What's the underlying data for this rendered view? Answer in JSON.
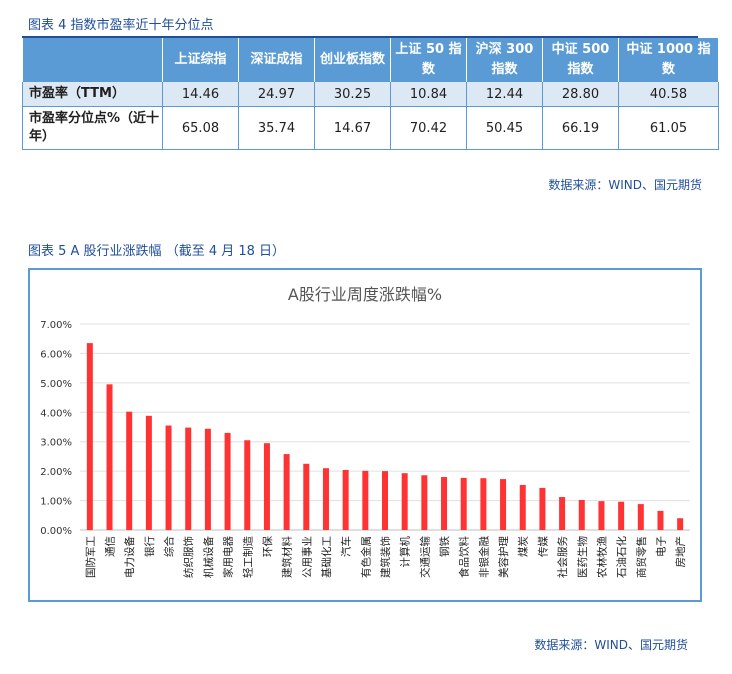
{
  "fig4": {
    "caption": "图表 4 指数市盈率近十年分位点",
    "headers": [
      "",
      "上证综指",
      "深证成指",
      "创业板指数",
      "上证 50 指数",
      "沪深 300 指数",
      "中证 500 指数",
      "中证 1000 指数"
    ],
    "rows": [
      {
        "label": "市盈率（TTM）",
        "values": [
          "14.46",
          "24.97",
          "30.25",
          "10.84",
          "12.44",
          "28.80",
          "40.58"
        ]
      },
      {
        "label": "市盈率分位点%（近十年）",
        "values": [
          "65.08",
          "35.74",
          "14.67",
          "70.42",
          "50.45",
          "66.19",
          "61.05"
        ]
      }
    ],
    "source": "数据来源：WIND、国元期货"
  },
  "fig5": {
    "caption": "图表 5 A 股行业涨跌幅 （截至 4 月 18 日）",
    "source": "数据来源：WIND、国元期货"
  },
  "chart_data": {
    "type": "bar",
    "title": "A股行业周度涨跌幅%",
    "xlabel": "",
    "ylabel": "",
    "ylim": [
      0,
      7
    ],
    "yticks": [
      "0.00%",
      "1.00%",
      "2.00%",
      "3.00%",
      "4.00%",
      "5.00%",
      "6.00%",
      "7.00%"
    ],
    "grid": true,
    "bar_color": "#ff3333",
    "categories": [
      "国防军工",
      "通信",
      "电力设备",
      "银行",
      "综合",
      "纺织服饰",
      "机械设备",
      "家用电器",
      "轻工制造",
      "环保",
      "建筑材料",
      "公用事业",
      "基础化工",
      "汽车",
      "有色金属",
      "建筑装饰",
      "计算机",
      "交通运输",
      "钢铁",
      "食品饮料",
      "非银金融",
      "美容护理",
      "煤炭",
      "传媒",
      "社会服务",
      "医药生物",
      "农林牧渔",
      "石油石化",
      "商贸零售",
      "电子",
      "房地产"
    ],
    "values": [
      6.35,
      4.95,
      4.02,
      3.88,
      3.55,
      3.48,
      3.44,
      3.3,
      3.05,
      2.95,
      2.58,
      2.25,
      2.1,
      2.04,
      2.01,
      2.0,
      1.93,
      1.86,
      1.8,
      1.77,
      1.76,
      1.73,
      1.53,
      1.43,
      1.12,
      1.02,
      0.98,
      0.96,
      0.88,
      0.65,
      0.4
    ]
  }
}
